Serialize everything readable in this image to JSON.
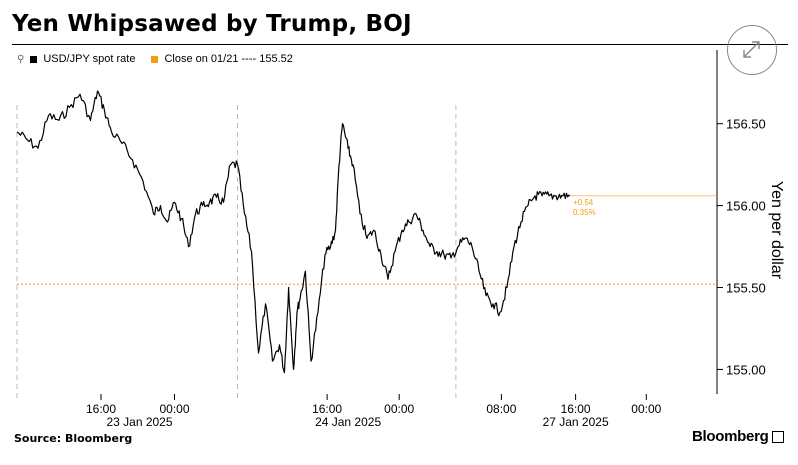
{
  "title": "Yen Whipsawed by Trump, BOJ",
  "legend": {
    "series_label": "USD/JPY spot rate",
    "close_label": "Close on 01/21 ---- 155.52"
  },
  "source": "Source: Bloomberg",
  "brand": "Bloomberg",
  "icons": [
    "pin-icon",
    "expand-icon"
  ],
  "colors": {
    "line": "#000000",
    "close": "#f39c12",
    "annotation": "#f39c12"
  },
  "annotation": {
    "change": "+0.54",
    "pct": "0.35%"
  },
  "chart_data": {
    "type": "line",
    "title": "Yen Whipsawed by Trump, BOJ",
    "ylabel": "Yen per dollar",
    "ylim": [
      154.85,
      156.95
    ],
    "yticks": [
      155.0,
      155.5,
      156.0,
      156.5
    ],
    "ytick_labels": [
      "155.00",
      "155.50",
      "156.00",
      "156.50"
    ],
    "xlim": [
      0,
      100
    ],
    "xticks": [
      {
        "x": 12.0,
        "label": "16:00"
      },
      {
        "x": 22.5,
        "label": "00:00"
      },
      {
        "x": 44.3,
        "label": "16:00"
      },
      {
        "x": 54.6,
        "label": "00:00"
      },
      {
        "x": 69.2,
        "label": "08:00"
      },
      {
        "x": 79.8,
        "label": "16:00"
      },
      {
        "x": 89.9,
        "label": "00:00"
      }
    ],
    "date_labels": [
      {
        "x": 17.5,
        "label": "23 Jan 2025"
      },
      {
        "x": 47.3,
        "label": "24 Jan 2025"
      },
      {
        "x": 79.8,
        "label": "27 Jan 2025"
      }
    ],
    "session_breaks": [
      0,
      31.5,
      62.7
    ],
    "reference": {
      "name": "Close on 01/21",
      "value": 155.52
    },
    "last_value": 156.06,
    "series": [
      {
        "name": "USD/JPY spot rate",
        "x": [
          0,
          1.5,
          3,
          4.5,
          6,
          7.5,
          9,
          10.5,
          11.5,
          12.5,
          13.5,
          15,
          16.5,
          18,
          19.5,
          20.5,
          21.5,
          22.5,
          23.5,
          24.5,
          25.5,
          26.5,
          27.5,
          28.5,
          29.5,
          30.5,
          31.5,
          32.5,
          33.5,
          34.5,
          35.5,
          36.5,
          37.5,
          38.2,
          38.8,
          39.5,
          40,
          40.5,
          41.2,
          42,
          43,
          44,
          44.8,
          45.5,
          46,
          46.5,
          47.3,
          48,
          49,
          50,
          51,
          52,
          53,
          54,
          55,
          56,
          57,
          58,
          59,
          60,
          61,
          62,
          63,
          64,
          65,
          66,
          67,
          68,
          69,
          70,
          71,
          72,
          73,
          74,
          75,
          76,
          77,
          78,
          79
        ],
        "values": [
          156.45,
          156.4,
          156.35,
          156.55,
          156.52,
          156.6,
          156.68,
          156.52,
          156.7,
          156.58,
          156.45,
          156.38,
          156.28,
          156.15,
          155.95,
          156.0,
          155.9,
          156.02,
          155.92,
          155.75,
          155.95,
          156.0,
          156.02,
          156.05,
          156.02,
          156.25,
          156.25,
          155.95,
          155.72,
          155.1,
          155.4,
          155.05,
          155.15,
          154.98,
          155.5,
          155.0,
          155.35,
          155.45,
          155.6,
          155.05,
          155.35,
          155.7,
          155.75,
          155.85,
          156.25,
          156.5,
          156.35,
          156.25,
          155.95,
          155.8,
          155.85,
          155.7,
          155.55,
          155.72,
          155.85,
          155.9,
          155.95,
          155.85,
          155.75,
          155.72,
          155.7,
          155.68,
          155.75,
          155.8,
          155.75,
          155.6,
          155.45,
          155.4,
          155.35,
          155.5,
          155.75,
          155.9,
          156.0,
          156.06,
          156.06,
          156.06,
          156.06,
          156.06,
          156.06
        ]
      }
    ]
  }
}
